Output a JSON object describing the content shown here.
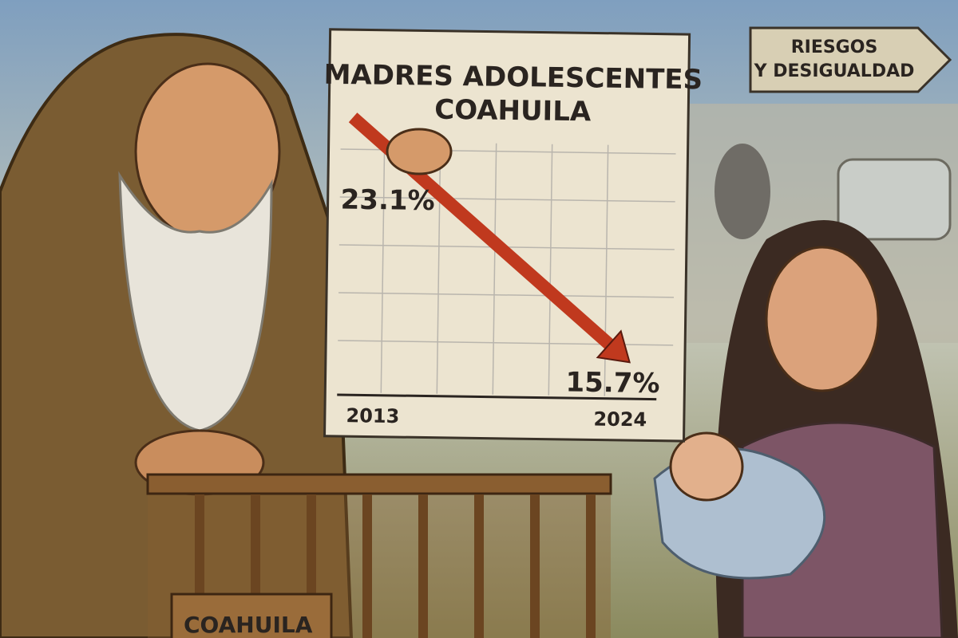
{
  "chart_data": {
    "type": "line",
    "title": "MADRES ADOLESCENTES COAHUILA",
    "x": [
      "2013",
      "2024"
    ],
    "values": [
      23.1,
      15.7
    ],
    "value_labels": [
      "23.1%",
      "15.7%"
    ],
    "color": "#c0391e"
  },
  "sign": {
    "lines": [
      "RIESGOS",
      "Y DESIGUALDAD"
    ]
  },
  "crib": {
    "label": "COAHUILA"
  }
}
